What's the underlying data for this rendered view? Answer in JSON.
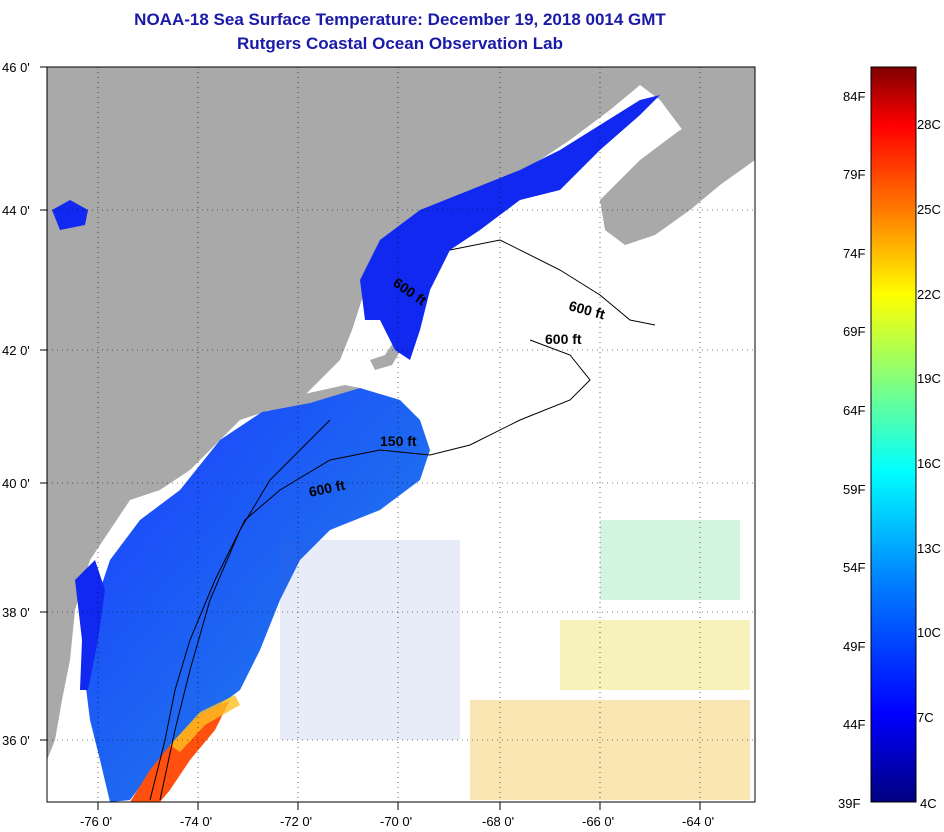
{
  "title_line1": "NOAA-18 Sea Surface Temperature:  December 19, 2018 0014 GMT",
  "title_line2": "Rutgers Coastal Ocean Observation Lab",
  "lat_labels": [
    "46 0'",
    "44 0'",
    "42 0'",
    "40 0'",
    "38 0'",
    "36 0'"
  ],
  "lon_labels": [
    "-76 0'",
    "-74 0'",
    "-72 0'",
    "-70 0'",
    "-68 0'",
    "-66 0'",
    "-64 0'"
  ],
  "contour_labels": [
    "600 ft",
    "600 ft",
    "600 ft",
    "150 ft",
    "600 ft"
  ],
  "colorbar": {
    "f_labels": [
      "84F",
      "79F",
      "74F",
      "69F",
      "64F",
      "59F",
      "54F",
      "49F",
      "44F",
      "39F"
    ],
    "c_labels": [
      "28C",
      "25C",
      "22C",
      "19C",
      "16C",
      "13C",
      "10C",
      "7C",
      "4C"
    ],
    "colors": [
      "#00007f",
      "#0000ff",
      "#0080ff",
      "#00ffff",
      "#80ff80",
      "#ffff00",
      "#ff8000",
      "#ff0000",
      "#7f0000"
    ]
  },
  "colors": {
    "land": "#a9a9a9",
    "water_cold": "#1030e0",
    "title": "#1a1aa8"
  }
}
